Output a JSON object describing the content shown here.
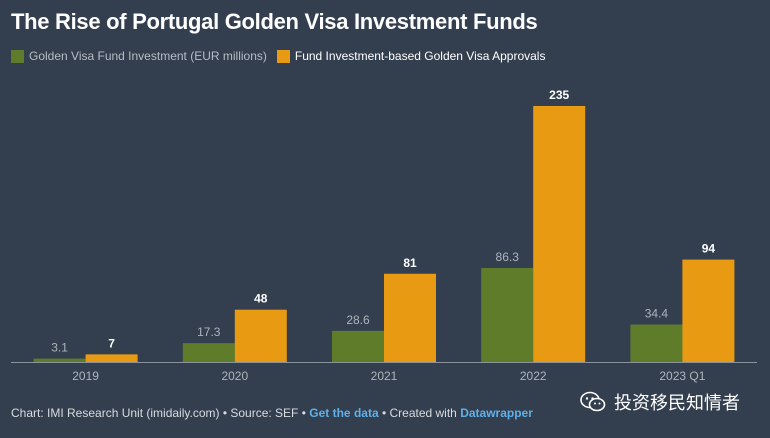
{
  "chart_data": {
    "type": "bar",
    "title": "The Rise of Portugal Golden Visa Investment Funds",
    "categories": [
      "2019",
      "2020",
      "2021",
      "2022",
      "2023 Q1"
    ],
    "series": [
      {
        "name": "Golden Visa Fund Investment (EUR millions)",
        "color": "#5f7c2b",
        "label_color": "#aeb4bc",
        "values": [
          3.1,
          17.3,
          28.6,
          86.3,
          34.4
        ]
      },
      {
        "name": "Fund Investment-based Golden Visa Approvals",
        "color": "#e89b12",
        "label_color": "#ffffff",
        "values": [
          7,
          48,
          81,
          235,
          94
        ]
      }
    ],
    "ylim": [
      0,
      235
    ],
    "grid": false,
    "legend": "top-left"
  },
  "footer": {
    "chart_prefix": "Chart: IMI Research Unit (imidaily.com) • Source: SEF • ",
    "get_data": "Get the data",
    "created_with": " • Created with ",
    "datawrapper": "Datawrapper"
  },
  "watermark": {
    "text": "投资移民知情者",
    "icon": "wechat-icon"
  }
}
